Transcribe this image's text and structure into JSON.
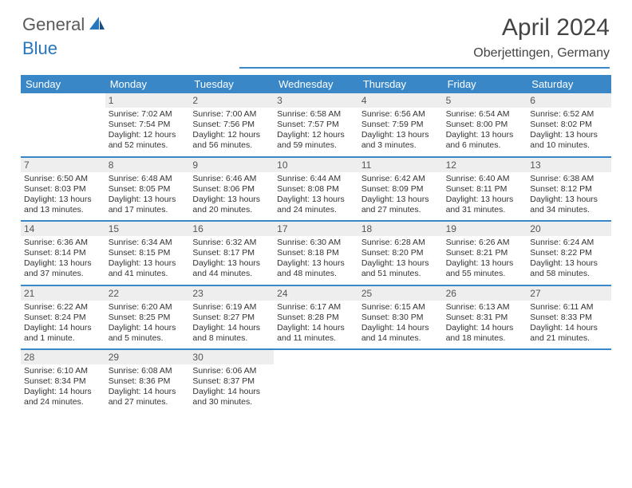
{
  "logo": {
    "text1": "General",
    "text2": "Blue"
  },
  "title": "April 2024",
  "location": "Oberjettingen, Germany",
  "colors": {
    "accent": "#3a87c8",
    "dayHeaderBg": "#3a87c8",
    "dayNumBg": "#eeeeee",
    "textDark": "#333333",
    "titleText": "#444444"
  },
  "dayNames": [
    "Sunday",
    "Monday",
    "Tuesday",
    "Wednesday",
    "Thursday",
    "Friday",
    "Saturday"
  ],
  "weeks": [
    [
      {
        "n": "",
        "sunrise": "",
        "sunset": "",
        "daylight": ""
      },
      {
        "n": "1",
        "sunrise": "Sunrise: 7:02 AM",
        "sunset": "Sunset: 7:54 PM",
        "daylight": "Daylight: 12 hours and 52 minutes."
      },
      {
        "n": "2",
        "sunrise": "Sunrise: 7:00 AM",
        "sunset": "Sunset: 7:56 PM",
        "daylight": "Daylight: 12 hours and 56 minutes."
      },
      {
        "n": "3",
        "sunrise": "Sunrise: 6:58 AM",
        "sunset": "Sunset: 7:57 PM",
        "daylight": "Daylight: 12 hours and 59 minutes."
      },
      {
        "n": "4",
        "sunrise": "Sunrise: 6:56 AM",
        "sunset": "Sunset: 7:59 PM",
        "daylight": "Daylight: 13 hours and 3 minutes."
      },
      {
        "n": "5",
        "sunrise": "Sunrise: 6:54 AM",
        "sunset": "Sunset: 8:00 PM",
        "daylight": "Daylight: 13 hours and 6 minutes."
      },
      {
        "n": "6",
        "sunrise": "Sunrise: 6:52 AM",
        "sunset": "Sunset: 8:02 PM",
        "daylight": "Daylight: 13 hours and 10 minutes."
      }
    ],
    [
      {
        "n": "7",
        "sunrise": "Sunrise: 6:50 AM",
        "sunset": "Sunset: 8:03 PM",
        "daylight": "Daylight: 13 hours and 13 minutes."
      },
      {
        "n": "8",
        "sunrise": "Sunrise: 6:48 AM",
        "sunset": "Sunset: 8:05 PM",
        "daylight": "Daylight: 13 hours and 17 minutes."
      },
      {
        "n": "9",
        "sunrise": "Sunrise: 6:46 AM",
        "sunset": "Sunset: 8:06 PM",
        "daylight": "Daylight: 13 hours and 20 minutes."
      },
      {
        "n": "10",
        "sunrise": "Sunrise: 6:44 AM",
        "sunset": "Sunset: 8:08 PM",
        "daylight": "Daylight: 13 hours and 24 minutes."
      },
      {
        "n": "11",
        "sunrise": "Sunrise: 6:42 AM",
        "sunset": "Sunset: 8:09 PM",
        "daylight": "Daylight: 13 hours and 27 minutes."
      },
      {
        "n": "12",
        "sunrise": "Sunrise: 6:40 AM",
        "sunset": "Sunset: 8:11 PM",
        "daylight": "Daylight: 13 hours and 31 minutes."
      },
      {
        "n": "13",
        "sunrise": "Sunrise: 6:38 AM",
        "sunset": "Sunset: 8:12 PM",
        "daylight": "Daylight: 13 hours and 34 minutes."
      }
    ],
    [
      {
        "n": "14",
        "sunrise": "Sunrise: 6:36 AM",
        "sunset": "Sunset: 8:14 PM",
        "daylight": "Daylight: 13 hours and 37 minutes."
      },
      {
        "n": "15",
        "sunrise": "Sunrise: 6:34 AM",
        "sunset": "Sunset: 8:15 PM",
        "daylight": "Daylight: 13 hours and 41 minutes."
      },
      {
        "n": "16",
        "sunrise": "Sunrise: 6:32 AM",
        "sunset": "Sunset: 8:17 PM",
        "daylight": "Daylight: 13 hours and 44 minutes."
      },
      {
        "n": "17",
        "sunrise": "Sunrise: 6:30 AM",
        "sunset": "Sunset: 8:18 PM",
        "daylight": "Daylight: 13 hours and 48 minutes."
      },
      {
        "n": "18",
        "sunrise": "Sunrise: 6:28 AM",
        "sunset": "Sunset: 8:20 PM",
        "daylight": "Daylight: 13 hours and 51 minutes."
      },
      {
        "n": "19",
        "sunrise": "Sunrise: 6:26 AM",
        "sunset": "Sunset: 8:21 PM",
        "daylight": "Daylight: 13 hours and 55 minutes."
      },
      {
        "n": "20",
        "sunrise": "Sunrise: 6:24 AM",
        "sunset": "Sunset: 8:22 PM",
        "daylight": "Daylight: 13 hours and 58 minutes."
      }
    ],
    [
      {
        "n": "21",
        "sunrise": "Sunrise: 6:22 AM",
        "sunset": "Sunset: 8:24 PM",
        "daylight": "Daylight: 14 hours and 1 minute."
      },
      {
        "n": "22",
        "sunrise": "Sunrise: 6:20 AM",
        "sunset": "Sunset: 8:25 PM",
        "daylight": "Daylight: 14 hours and 5 minutes."
      },
      {
        "n": "23",
        "sunrise": "Sunrise: 6:19 AM",
        "sunset": "Sunset: 8:27 PM",
        "daylight": "Daylight: 14 hours and 8 minutes."
      },
      {
        "n": "24",
        "sunrise": "Sunrise: 6:17 AM",
        "sunset": "Sunset: 8:28 PM",
        "daylight": "Daylight: 14 hours and 11 minutes."
      },
      {
        "n": "25",
        "sunrise": "Sunrise: 6:15 AM",
        "sunset": "Sunset: 8:30 PM",
        "daylight": "Daylight: 14 hours and 14 minutes."
      },
      {
        "n": "26",
        "sunrise": "Sunrise: 6:13 AM",
        "sunset": "Sunset: 8:31 PM",
        "daylight": "Daylight: 14 hours and 18 minutes."
      },
      {
        "n": "27",
        "sunrise": "Sunrise: 6:11 AM",
        "sunset": "Sunset: 8:33 PM",
        "daylight": "Daylight: 14 hours and 21 minutes."
      }
    ],
    [
      {
        "n": "28",
        "sunrise": "Sunrise: 6:10 AM",
        "sunset": "Sunset: 8:34 PM",
        "daylight": "Daylight: 14 hours and 24 minutes."
      },
      {
        "n": "29",
        "sunrise": "Sunrise: 6:08 AM",
        "sunset": "Sunset: 8:36 PM",
        "daylight": "Daylight: 14 hours and 27 minutes."
      },
      {
        "n": "30",
        "sunrise": "Sunrise: 6:06 AM",
        "sunset": "Sunset: 8:37 PM",
        "daylight": "Daylight: 14 hours and 30 minutes."
      },
      {
        "n": "",
        "sunrise": "",
        "sunset": "",
        "daylight": ""
      },
      {
        "n": "",
        "sunrise": "",
        "sunset": "",
        "daylight": ""
      },
      {
        "n": "",
        "sunrise": "",
        "sunset": "",
        "daylight": ""
      },
      {
        "n": "",
        "sunrise": "",
        "sunset": "",
        "daylight": ""
      }
    ]
  ]
}
